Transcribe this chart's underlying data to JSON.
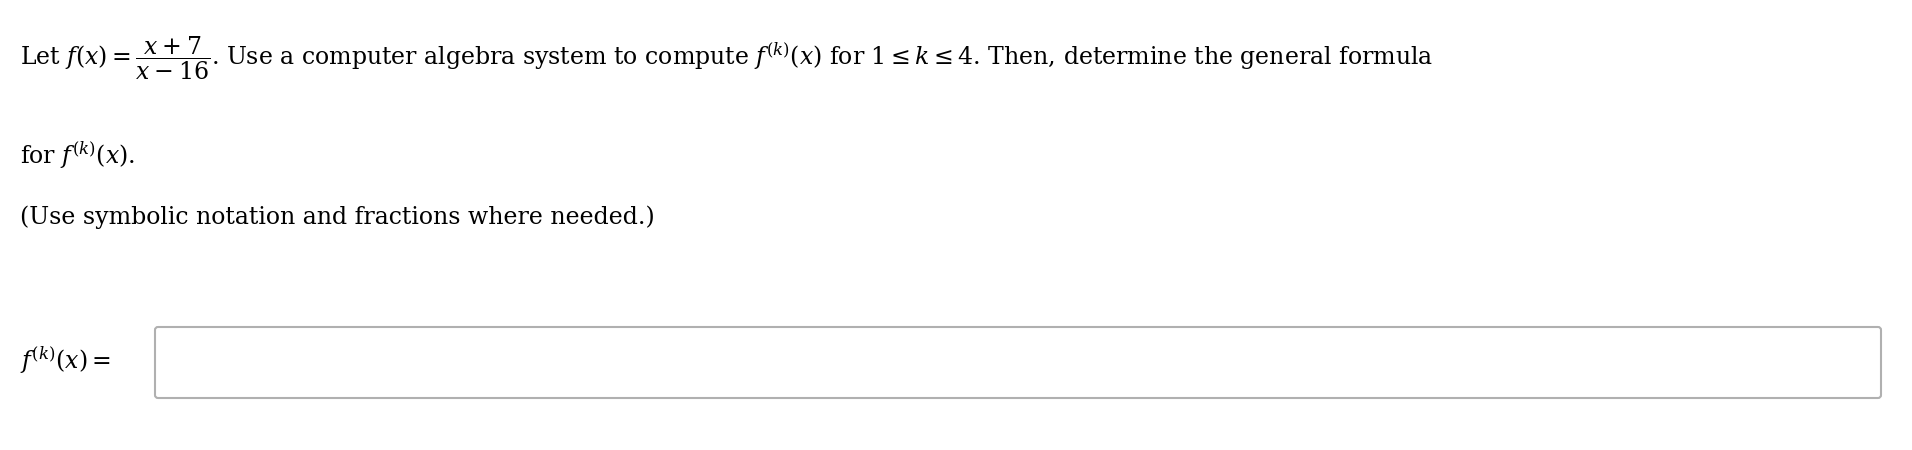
{
  "background_color": "#ffffff",
  "text_color": "#000000",
  "box_fill": "#ffffff",
  "box_edge": "#b0b0b0",
  "fontsize_main": 17,
  "fig_width": 19.12,
  "fig_height": 4.5,
  "dpi": 100,
  "line1": "Let $f(x) = \\dfrac{x+7}{x-16}$. Use a computer algebra system to compute $f^{(k)}(x)$ for $1 \\leq k \\leq 4$. Then, determine the general formula",
  "line2": "for $f^{(k)}(x)$.",
  "line3": "(Use symbolic notation and fractions where needed.)",
  "answer_label": "$f^{(k)}(x) =$"
}
